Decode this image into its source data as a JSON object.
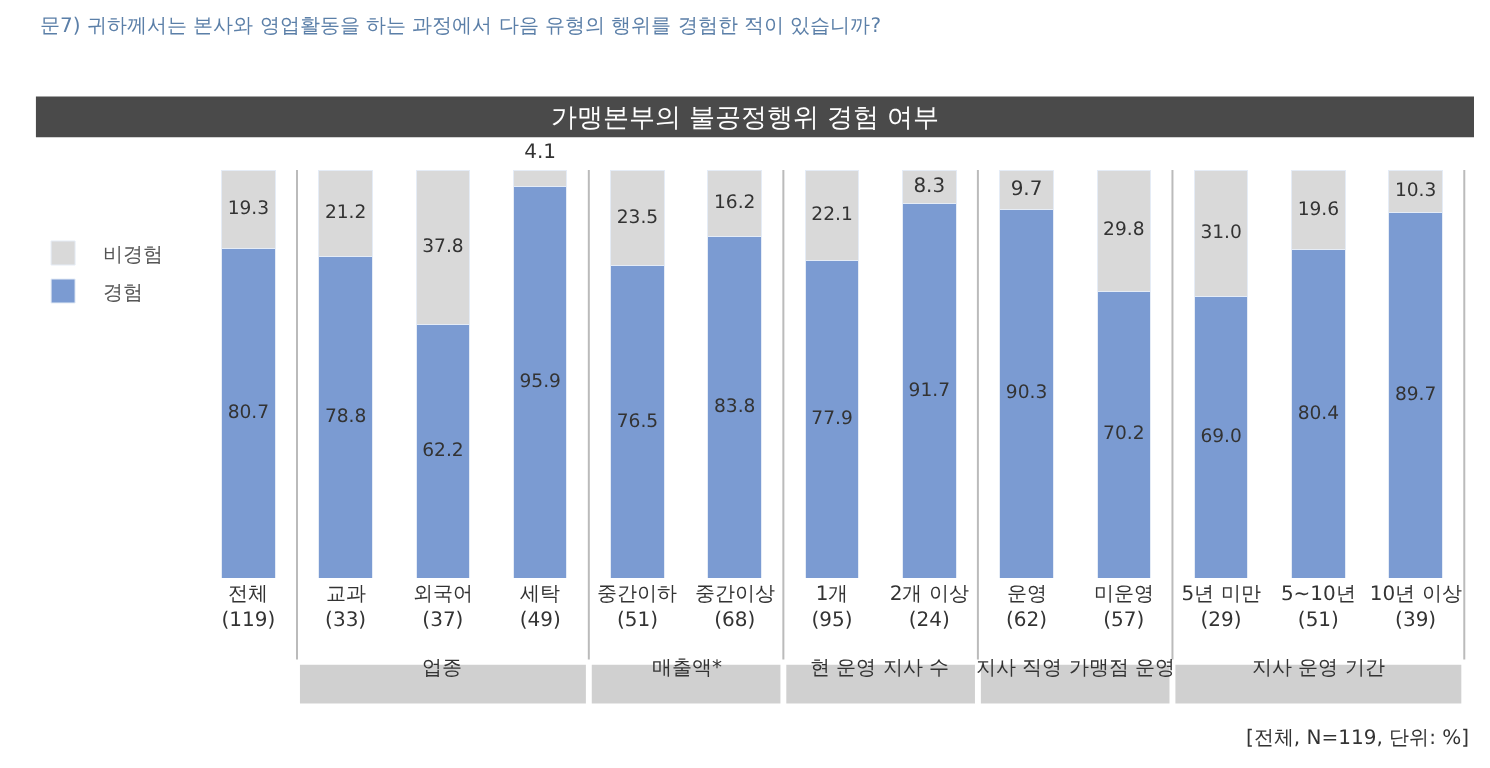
{
  "chart_data": {
    "type": "bar",
    "title": "가맹본부의 불공정행위 경험 여부",
    "subtitle": "문7) 귀하께서는 본사와 영업활동을 하는 과정에서 다음 유형의 행위를 경험한 적이 있습니까?",
    "categories": [
      "전체\n(119)",
      "교과\n(33)",
      "외국어\n(37)",
      "세탁\n(49)",
      "중간이하\n(51)",
      "중간이상\n(68)",
      "1개\n(95)",
      "2개 이상\n(24)",
      "운영\n(62)",
      "미운영\n(57)",
      "5년 미만\n(29)",
      "5~10년\n(51)",
      "10년 이상\n(39)"
    ],
    "stacked": true,
    "series": [
      {
        "name": "경험",
        "color": "#7b9bd2",
        "values": [
          80.7,
          78.8,
          62.2,
          95.9,
          76.5,
          83.8,
          77.9,
          91.7,
          90.3,
          70.2,
          69.0,
          80.4,
          89.7
        ],
        "value_labels": [
          "80.7",
          "78.8",
          "62.2",
          "95.9",
          "76.5",
          "83.8",
          "77.9",
          "91.7",
          "90.3",
          "70.2",
          "69.0",
          "80.4",
          "89.7"
        ]
      },
      {
        "name": "비경험",
        "color": "#d9d9d9",
        "values": [
          19.3,
          21.2,
          37.8,
          4.1,
          23.5,
          16.2,
          22.1,
          8.3,
          9.7,
          29.8,
          31.0,
          19.6,
          10.3
        ],
        "value_labels": [
          "19.3",
          "21.2",
          "37.8",
          "4.1",
          "23.5",
          "16.2",
          "22.1",
          "8.3",
          "9.7",
          "29.8",
          "31.0",
          "19.6",
          "10.3"
        ]
      }
    ],
    "legend": "left",
    "annotations": [
      "업종",
      "매출액*",
      "현 운영 지사 수",
      "지사 직영 가맹점 운영",
      "지사 운영 기간",
      "[전체, N=119, 단위: %]"
    ]
  }
}
